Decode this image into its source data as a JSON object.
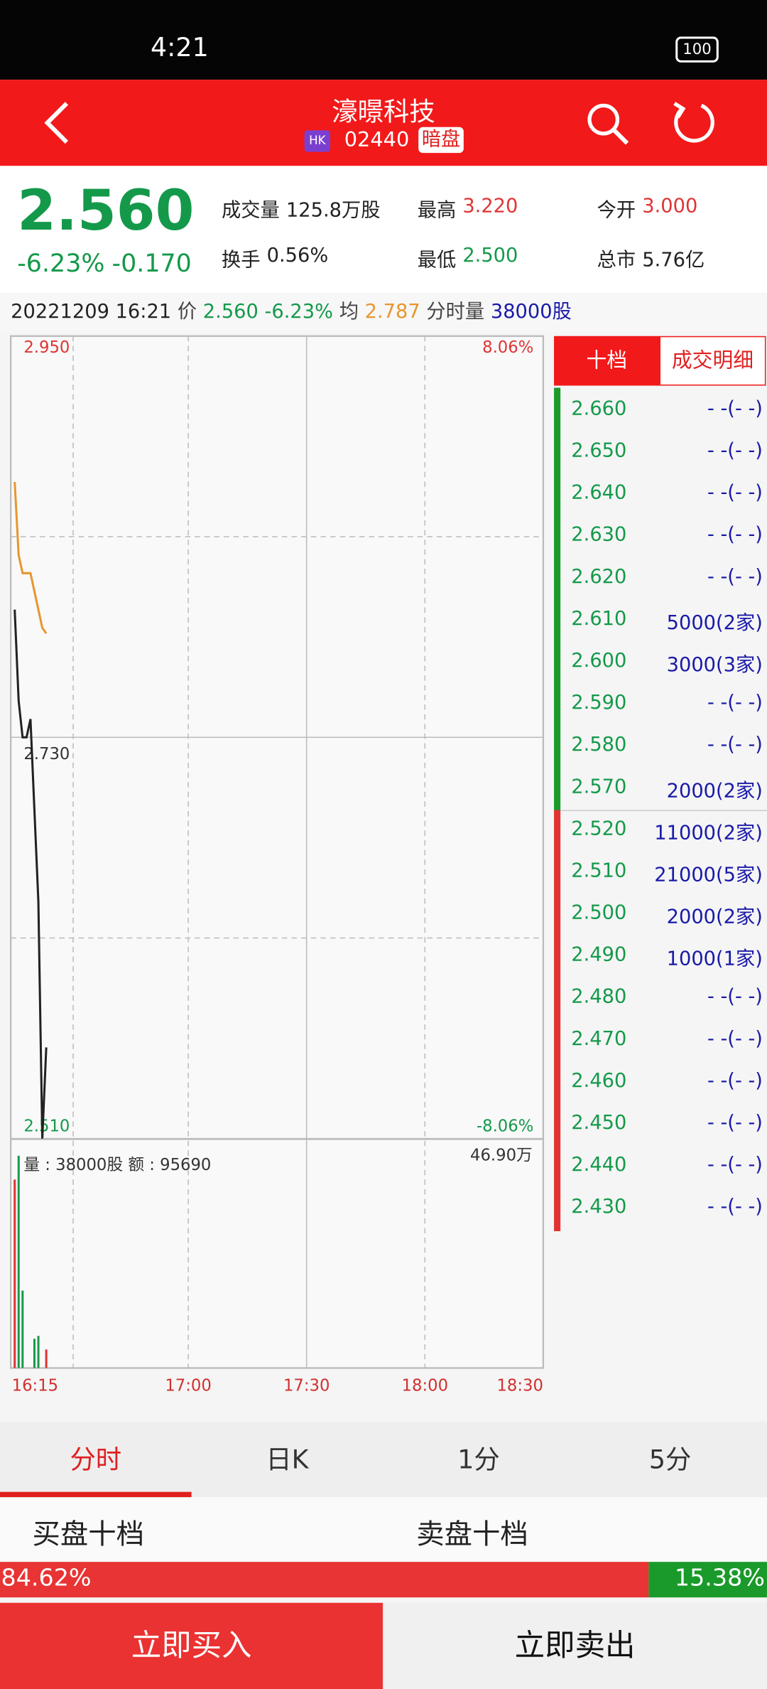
{
  "status_bar": {
    "time": "4:21",
    "battery": "100"
  },
  "header": {
    "title": "濠暻科技",
    "market": "HK",
    "code": "02440",
    "tag": "暗盘"
  },
  "quote": {
    "price": "2.560",
    "change_pct": "-6.23%",
    "change": "-0.170",
    "stats": [
      {
        "label": "成交量",
        "value": "125.8万股",
        "tone": "flat"
      },
      {
        "label": "最高",
        "value": "3.220",
        "tone": "up"
      },
      {
        "label": "今开",
        "value": "3.000",
        "tone": "up"
      },
      {
        "label": "换手",
        "value": "0.56%",
        "tone": "flat"
      },
      {
        "label": "最低",
        "value": "2.500",
        "tone": "down"
      },
      {
        "label": "总市",
        "value": "5.76亿",
        "tone": "flat"
      }
    ]
  },
  "info_line": {
    "datetime": "20221209 16:21",
    "price_label": "价",
    "price": "2.560",
    "change_pct": "-6.23%",
    "avg_label": "均",
    "avg": "2.787",
    "vol_label": "分时量",
    "vol": "38000股"
  },
  "chart_data": [
    {
      "type": "line",
      "x": [
        1,
        2,
        3,
        4,
        5,
        6,
        7,
        8,
        9
      ],
      "xlim": [
        0,
        135
      ],
      "ylim": [
        2.51,
        2.95
      ],
      "yticks": [
        {
          "value": 2.95,
          "label": "2.950"
        },
        {
          "value": 2.73,
          "label": "2.730"
        },
        {
          "value": 2.51,
          "label": "2.510"
        }
      ],
      "y2lim": [
        -8.06,
        8.06
      ],
      "y2ticks": [
        {
          "value": 8.06,
          "label": "8.06%"
        },
        {
          "value": -8.06,
          "label": "-8.06%"
        }
      ],
      "series": [
        {
          "color": "#222222",
          "values": [
            2.8,
            2.75,
            2.73,
            2.73,
            2.74,
            2.69,
            2.64,
            2.51,
            2.56
          ]
        },
        {
          "color": "#e8962e",
          "values": [
            2.87,
            2.83,
            2.82,
            2.82,
            2.82,
            2.81,
            2.8,
            2.79,
            2.787
          ]
        }
      ]
    },
    {
      "type": "bar",
      "label": "量 : 38000股 额 : 95690",
      "x": [
        1,
        2,
        3,
        6,
        7,
        9
      ],
      "values": [
        387000,
        436000,
        159000,
        60000,
        66000,
        38000
      ],
      "colors": [
        "#e03434",
        "#1a9a4a",
        "#1a9a4a",
        "#1a9a4a",
        "#1a9a4a",
        "#e03434"
      ],
      "xlim": [
        0,
        135
      ],
      "xticks": [
        {
          "value": 0,
          "label": "16:15"
        },
        {
          "value": 45,
          "label": "17:00"
        },
        {
          "value": 75,
          "label": "17:30"
        },
        {
          "value": 105,
          "label": "18:00"
        },
        {
          "value": 135,
          "label": "18:30"
        }
      ],
      "ylim": [
        0,
        469000
      ],
      "yticks": [
        {
          "value": 469000,
          "label": "46.90万"
        }
      ]
    }
  ],
  "book": {
    "tabs": [
      "十档",
      "成交明细"
    ],
    "asks": [
      {
        "price": "2.660",
        "qty": "- -(- -)"
      },
      {
        "price": "2.650",
        "qty": "- -(- -)"
      },
      {
        "price": "2.640",
        "qty": "- -(- -)"
      },
      {
        "price": "2.630",
        "qty": "- -(- -)"
      },
      {
        "price": "2.620",
        "qty": "- -(- -)"
      },
      {
        "price": "2.610",
        "qty": "5000(2家)"
      },
      {
        "price": "2.600",
        "qty": "3000(3家)"
      },
      {
        "price": "2.590",
        "qty": "- -(- -)"
      },
      {
        "price": "2.580",
        "qty": "- -(- -)"
      },
      {
        "price": "2.570",
        "qty": "2000(2家)"
      }
    ],
    "bids": [
      {
        "price": "2.520",
        "qty": "11000(2家)"
      },
      {
        "price": "2.510",
        "qty": "21000(5家)"
      },
      {
        "price": "2.500",
        "qty": "2000(2家)"
      },
      {
        "price": "2.490",
        "qty": "1000(1家)"
      },
      {
        "price": "2.480",
        "qty": "- -(- -)"
      },
      {
        "price": "2.470",
        "qty": "- -(- -)"
      },
      {
        "price": "2.460",
        "qty": "- -(- -)"
      },
      {
        "price": "2.450",
        "qty": "- -(- -)"
      },
      {
        "price": "2.440",
        "qty": "- -(- -)"
      },
      {
        "price": "2.430",
        "qty": "- -(- -)"
      }
    ]
  },
  "tabs": [
    "分时",
    "日K",
    "1分",
    "5分"
  ],
  "sections": [
    "买盘十档",
    "卖盘十档"
  ],
  "ratio": {
    "buy": {
      "value": 84.62,
      "label": "84.62%"
    },
    "sell": {
      "value": 15.38,
      "label": "15.38%"
    }
  },
  "buttons": [
    "立即买入",
    "立即卖出"
  ]
}
